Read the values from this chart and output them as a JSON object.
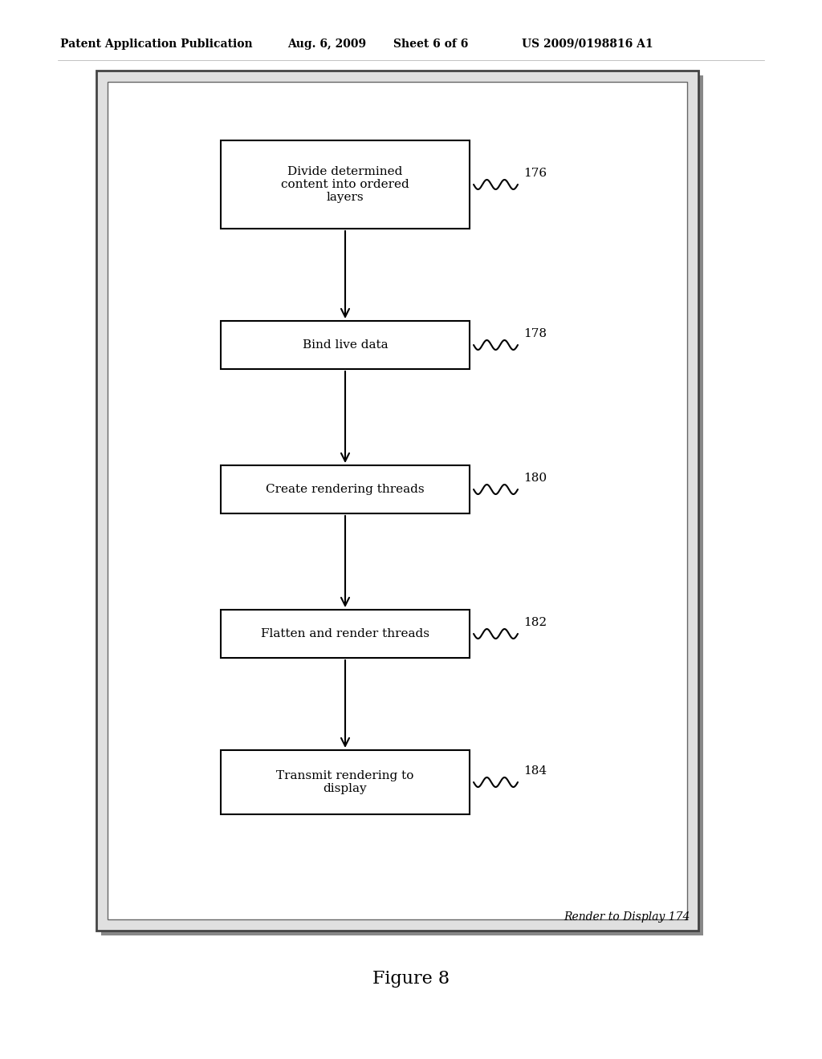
{
  "title_header": "Patent Application Publication",
  "date_header": "Aug. 6, 2009",
  "sheet_header": "Sheet 6 of 6",
  "patent_header": "US 2009/0198816 A1",
  "figure_label": "Figure 8",
  "outer_box_label": "Render to Display 174",
  "boxes": [
    {
      "label": "Divide determined\ncontent into ordered\nlayers",
      "ref": "176"
    },
    {
      "label": "Bind live data",
      "ref": "178"
    },
    {
      "label": "Create rendering threads",
      "ref": "180"
    },
    {
      "label": "Flatten and render threads",
      "ref": "182"
    },
    {
      "label": "Transmit rendering to\ndisplay",
      "ref": "184"
    }
  ],
  "background_color": "#ffffff",
  "box_edge_color": "#000000",
  "arrow_color": "#000000",
  "text_color": "#000000",
  "header_color": "#000000",
  "outer_box_shadow_color": "#888888",
  "outer_box_fill": "#d8d8d8"
}
